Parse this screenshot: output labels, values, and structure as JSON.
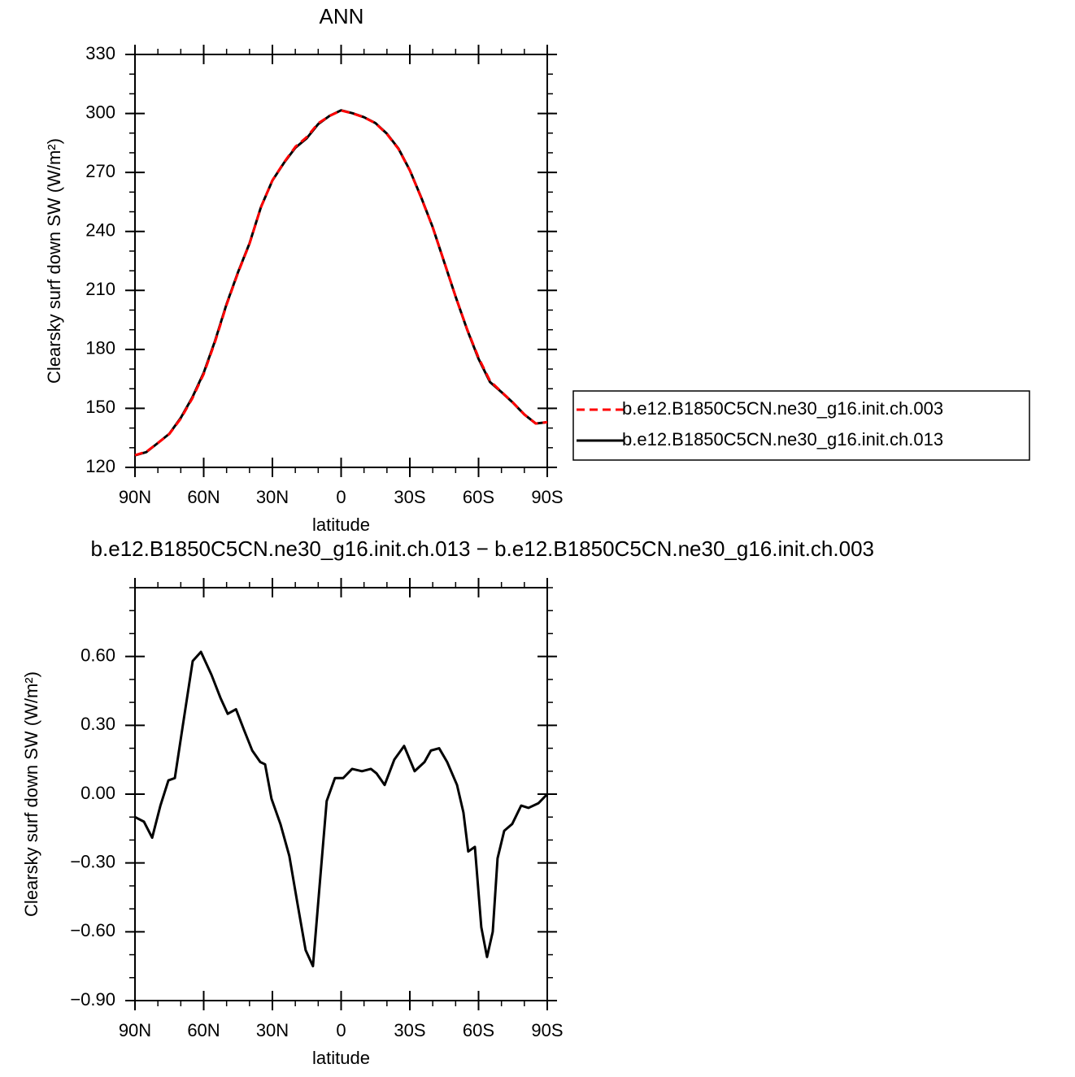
{
  "chart_data": [
    {
      "type": "line",
      "title": "ANN",
      "xlabel": "latitude",
      "ylabel": "Clearsky surf down SW (W/m²)",
      "x": [
        90,
        85,
        80,
        75,
        70,
        65,
        60,
        55,
        50,
        45,
        40,
        35,
        30,
        25,
        20,
        15,
        10,
        5,
        0,
        -5,
        -10,
        -15,
        -20,
        -25,
        -30,
        -35,
        -40,
        -45,
        -50,
        -55,
        -60,
        -65,
        -70,
        -75,
        -80,
        -85,
        -90
      ],
      "series": [
        {
          "name": "b.e12.B1850C5CN.ne30_g16.init.ch.003",
          "color": "#ff0000",
          "style": "dashed",
          "values": [
            126.2,
            128,
            132.4,
            137,
            144.8,
            155,
            167.5,
            184,
            202.7,
            219,
            233.7,
            252.3,
            266,
            275,
            283,
            288,
            295,
            298.8,
            301.5,
            300,
            298,
            295,
            289.5,
            282,
            271,
            257,
            242,
            224.6,
            206.8,
            190.3,
            175.8,
            164,
            158.4,
            153,
            146.9,
            142.3,
            143
          ]
        },
        {
          "name": "b.e12.B1850C5CN.ne30_g16.init.ch.013",
          "color": "#000000",
          "style": "solid",
          "values": [
            126.1,
            127.8,
            132.4,
            137.1,
            145.2,
            155.5,
            168.1,
            184.5,
            203.1,
            219.3,
            233.9,
            252.4,
            265.9,
            274.8,
            282.5,
            287.4,
            294.6,
            298.8,
            301.6,
            300.1,
            298.1,
            295.1,
            289.7,
            282.2,
            271.1,
            257.2,
            242.1,
            224.4,
            206.8,
            190.1,
            175.2,
            163.4,
            158.3,
            152.9,
            146.9,
            142.3,
            143
          ]
        }
      ],
      "xlim": [
        90,
        -90
      ],
      "xticks": [
        {
          "value": 90,
          "label": "90N"
        },
        {
          "value": 60,
          "label": "60N"
        },
        {
          "value": 30,
          "label": "30N"
        },
        0,
        {
          "value": -30,
          "label": "30S"
        },
        {
          "value": -60,
          "label": "60S"
        },
        {
          "value": -90,
          "label": "90S"
        }
      ],
      "ylim": [
        120,
        330
      ],
      "yticks": [
        120,
        150,
        180,
        210,
        240,
        270,
        300,
        330
      ],
      "legend": "right"
    },
    {
      "type": "line",
      "title": "b.e12.B1850C5CN.ne30_g16.init.ch.013 − b.e12.B1850C5CN.ne30_g16.init.ch.003",
      "xlabel": "latitude",
      "ylabel": "Clearsky surf down SW (W/m²)",
      "x": [
        90,
        86.1,
        82.5,
        78.9,
        75.4,
        72.6,
        69.1,
        64.8,
        61.2,
        56.6,
        52.7,
        49.5,
        45.9,
        42.4,
        38.8,
        35.3,
        33.2,
        30.4,
        26.5,
        22.6,
        19,
        15.5,
        12.3,
        9.4,
        6.3,
        2.7,
        -0.9,
        -4.8,
        -9.1,
        -13,
        -15.5,
        -19,
        -23.2,
        -27.5,
        -32.1,
        -36.4,
        -39.2,
        -42.8,
        -46.3,
        -50.6,
        -53.4,
        -55.5,
        -58.4,
        -61.2,
        -63.7,
        -66.2,
        -68.3,
        -71.2,
        -74.7,
        -78.6,
        -81.8,
        -86.1,
        -90
      ],
      "values": [
        -0.1,
        -0.12,
        -0.19,
        -0.05,
        0.06,
        0.07,
        0.3,
        0.58,
        0.62,
        0.52,
        0.42,
        0.35,
        0.37,
        0.28,
        0.19,
        0.14,
        0.13,
        -0.02,
        -0.13,
        -0.27,
        -0.48,
        -0.68,
        -0.75,
        -0.4,
        -0.03,
        0.07,
        0.07,
        0.11,
        0.1,
        0.11,
        0.09,
        0.04,
        0.15,
        0.21,
        0.1,
        0.14,
        0.19,
        0.2,
        0.14,
        0.04,
        -0.08,
        -0.25,
        -0.23,
        -0.58,
        -0.71,
        -0.6,
        -0.28,
        -0.16,
        -0.13,
        -0.05,
        -0.06,
        -0.04,
        0
      ],
      "color": "#000000",
      "style": "solid",
      "xlim": [
        90,
        -90
      ],
      "xticks": [
        {
          "value": 90,
          "label": "90N"
        },
        {
          "value": 60,
          "label": "60N"
        },
        {
          "value": 30,
          "label": "30N"
        },
        0,
        {
          "value": -30,
          "label": "30S"
        },
        {
          "value": -60,
          "label": "60S"
        },
        {
          "value": -90,
          "label": "90S"
        }
      ],
      "ylim": [
        -0.9,
        0.9
      ],
      "yticks": [
        {
          "value": -0.9,
          "label": "−0.90"
        },
        {
          "value": -0.6,
          "label": "−0.60"
        },
        {
          "value": -0.3,
          "label": "−0.30"
        },
        {
          "value": 0,
          "label": "0.00"
        },
        {
          "value": 0.3,
          "label": "0.30"
        },
        {
          "value": 0.6,
          "label": "0.60"
        }
      ]
    }
  ]
}
